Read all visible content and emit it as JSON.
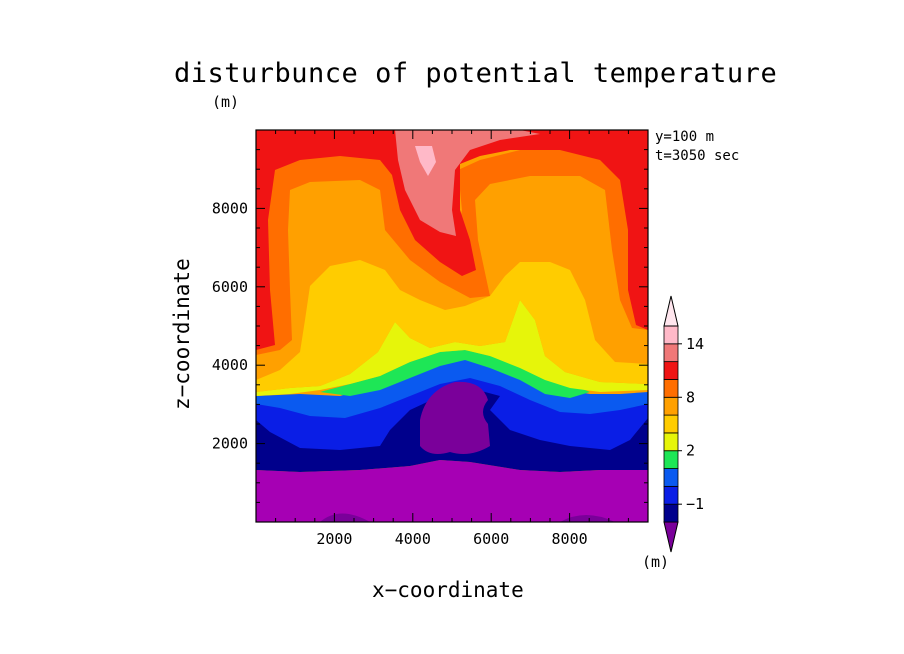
{
  "chart_data": {
    "type": "heatmap",
    "title": "disturbunce of potential temperature",
    "title_unit": "(m)",
    "xlabel": "x−coordinate",
    "ylabel": "z−coordinate",
    "annotations": [
      "y=100 m",
      "t=3050 sec"
    ],
    "xlim": [
      0,
      10000
    ],
    "ylim": [
      0,
      10000
    ],
    "x_ticks": [
      2000,
      4000,
      6000,
      8000
    ],
    "y_ticks": [
      2000,
      4000,
      6000,
      8000
    ],
    "x_tick_labels": [
      "2000",
      "4000",
      "6000",
      "8000"
    ],
    "y_tick_labels": [
      "2000",
      "4000",
      "6000",
      "8000"
    ],
    "colorbar": {
      "unit": "(m)",
      "levels": [
        -2,
        -1,
        0,
        1,
        2,
        4,
        6,
        8,
        10,
        12,
        14,
        16
      ],
      "tick_labels": [
        "14",
        "8",
        "2",
        "−1"
      ],
      "colors": [
        "#7a009a",
        "#00008c",
        "#0a1ee6",
        "#0a5af0",
        "#1ee656",
        "#e6f50a",
        "#ffcc00",
        "#ffa000",
        "#ff6e00",
        "#f01414",
        "#f07878",
        "#ffb9c8",
        "#ffe6ee"
      ]
    }
  }
}
